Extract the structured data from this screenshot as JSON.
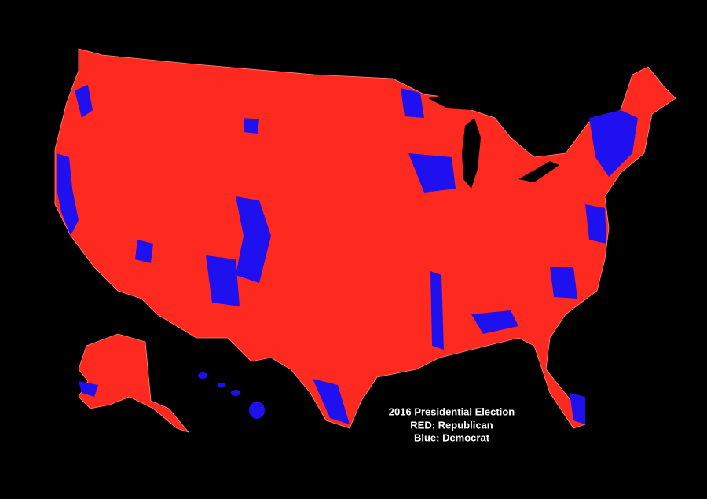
{
  "title": "2016 Presidential Election",
  "legend": {
    "items": [
      "RED: Republican",
      "Blue: Democrat"
    ]
  }
}
